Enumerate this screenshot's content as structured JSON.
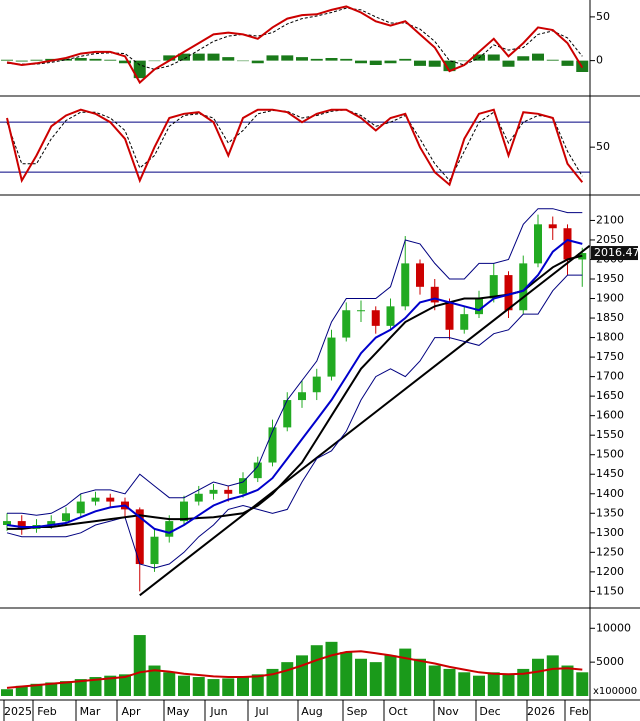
{
  "chart_data": [
    {
      "type": "line",
      "ylim": [
        -37,
        67
      ],
      "yticks": [
        0,
        50
      ],
      "series": [
        {
          "style": "bar",
          "color": "#1a7a1a",
          "values": [
            1,
            -1,
            1,
            2,
            2,
            3,
            2,
            1,
            -3,
            -20,
            0,
            6,
            8,
            8,
            8,
            4,
            0,
            -3,
            6,
            6,
            4,
            2,
            3,
            2,
            -3,
            -5,
            -3,
            2,
            -6,
            -7,
            -12,
            0,
            7,
            7,
            -7,
            5,
            8,
            1,
            -6,
            -13
          ]
        },
        {
          "style": "dashed",
          "color": "#000000",
          "values": [
            -3,
            -4,
            -4,
            -2,
            1,
            5,
            8,
            9,
            8,
            -5,
            -10,
            -6,
            2,
            12,
            22,
            28,
            30,
            28,
            32,
            42,
            48,
            51,
            55,
            60,
            58,
            50,
            43,
            43,
            36,
            22,
            0,
            -5,
            3,
            18,
            12,
            15,
            30,
            34,
            26,
            5
          ]
        },
        {
          "style": "line",
          "color": "#cc0000",
          "values": [
            -2,
            -5,
            -3,
            0,
            3,
            8,
            10,
            10,
            5,
            -25,
            -10,
            0,
            10,
            20,
            30,
            32,
            30,
            25,
            38,
            48,
            52,
            53,
            58,
            62,
            55,
            45,
            40,
            45,
            30,
            15,
            -12,
            -5,
            10,
            25,
            5,
            20,
            38,
            35,
            20,
            -8
          ]
        }
      ]
    },
    {
      "type": "line",
      "ylim": [
        -5,
        109
      ],
      "yticks": [
        50
      ],
      "levels": [
        20,
        80
      ],
      "series": [
        {
          "style": "dashed",
          "color": "#000000",
          "values": [
            80,
            30,
            30,
            60,
            82,
            92,
            92,
            85,
            70,
            25,
            40,
            75,
            88,
            90,
            85,
            55,
            70,
            90,
            94,
            93,
            85,
            88,
            93,
            95,
            88,
            75,
            80,
            88,
            60,
            30,
            10,
            45,
            80,
            92,
            55,
            80,
            88,
            86,
            45,
            15
          ]
        },
        {
          "style": "line",
          "color": "#cc0000",
          "values": [
            85,
            10,
            40,
            75,
            88,
            95,
            90,
            80,
            60,
            10,
            50,
            85,
            90,
            92,
            80,
            40,
            85,
            95,
            95,
            92,
            80,
            90,
            95,
            95,
            85,
            70,
            85,
            90,
            50,
            20,
            5,
            60,
            90,
            95,
            40,
            92,
            90,
            85,
            30,
            8
          ]
        }
      ]
    },
    {
      "type": "candlestick",
      "ylim": [
        1110,
        2160
      ],
      "yticks": [
        1150,
        1200,
        1250,
        1300,
        1350,
        1400,
        1450,
        1500,
        1550,
        1600,
        1650,
        1700,
        1750,
        1800,
        1850,
        1900,
        1950,
        2000,
        2050,
        2100
      ],
      "up_color": "#22aa22",
      "down_color": "#cc0000",
      "candles": [
        [
          1320,
          1350,
          1305,
          1330
        ],
        [
          1330,
          1345,
          1295,
          1310
        ],
        [
          1310,
          1335,
          1300,
          1320
        ],
        [
          1320,
          1345,
          1310,
          1330
        ],
        [
          1330,
          1365,
          1320,
          1350
        ],
        [
          1350,
          1400,
          1340,
          1380
        ],
        [
          1380,
          1405,
          1370,
          1390
        ],
        [
          1390,
          1400,
          1365,
          1380
        ],
        [
          1380,
          1390,
          1340,
          1360
        ],
        [
          1360,
          1365,
          1150,
          1220
        ],
        [
          1220,
          1310,
          1200,
          1290
        ],
        [
          1290,
          1345,
          1275,
          1330
        ],
        [
          1330,
          1395,
          1320,
          1380
        ],
        [
          1380,
          1420,
          1370,
          1400
        ],
        [
          1400,
          1425,
          1385,
          1410
        ],
        [
          1410,
          1420,
          1380,
          1400
        ],
        [
          1400,
          1455,
          1390,
          1440
        ],
        [
          1440,
          1495,
          1430,
          1480
        ],
        [
          1480,
          1590,
          1470,
          1570
        ],
        [
          1570,
          1660,
          1560,
          1640
        ],
        [
          1640,
          1690,
          1620,
          1660
        ],
        [
          1660,
          1720,
          1640,
          1700
        ],
        [
          1700,
          1820,
          1690,
          1800
        ],
        [
          1800,
          1890,
          1790,
          1870
        ],
        [
          1870,
          1895,
          1840,
          1870
        ],
        [
          1870,
          1880,
          1810,
          1830
        ],
        [
          1830,
          1900,
          1820,
          1880
        ],
        [
          1880,
          2060,
          1870,
          1990
        ],
        [
          1990,
          2000,
          1910,
          1930
        ],
        [
          1930,
          1950,
          1870,
          1890
        ],
        [
          1890,
          1900,
          1795,
          1820
        ],
        [
          1820,
          1880,
          1810,
          1860
        ],
        [
          1860,
          1920,
          1850,
          1900
        ],
        [
          1900,
          1990,
          1890,
          1960
        ],
        [
          1960,
          1970,
          1850,
          1870
        ],
        [
          1870,
          2010,
          1860,
          1990
        ],
        [
          1990,
          2115,
          1980,
          2090
        ],
        [
          2090,
          2110,
          2050,
          2080
        ],
        [
          2080,
          2090,
          1960,
          2000
        ],
        [
          2000,
          2030,
          1930,
          2016.47
        ]
      ],
      "series": [
        {
          "style": "line",
          "color": "#000080",
          "width": 1,
          "values": [
            1350,
            1350,
            1345,
            1350,
            1370,
            1400,
            1410,
            1410,
            1400,
            1450,
            1420,
            1390,
            1390,
            1410,
            1430,
            1420,
            1430,
            1470,
            1560,
            1640,
            1690,
            1740,
            1840,
            1900,
            1900,
            1900,
            1930,
            2050,
            2040,
            1990,
            1950,
            1950,
            1990,
            1990,
            2000,
            2090,
            2130,
            2130,
            2120,
            2120
          ]
        },
        {
          "style": "line",
          "color": "#000080",
          "width": 1,
          "values": [
            1300,
            1290,
            1290,
            1290,
            1290,
            1300,
            1320,
            1330,
            1340,
            1220,
            1210,
            1220,
            1250,
            1290,
            1320,
            1360,
            1370,
            1360,
            1350,
            1360,
            1430,
            1490,
            1510,
            1560,
            1640,
            1700,
            1720,
            1700,
            1740,
            1800,
            1800,
            1790,
            1780,
            1810,
            1820,
            1860,
            1860,
            1920,
            1960,
            1960
          ]
        },
        {
          "style": "line",
          "color": "#000000",
          "width": 2,
          "values": [
            1310,
            1310,
            1315,
            1315,
            1320,
            1325,
            1330,
            1335,
            1340,
            1345,
            1340,
            1335,
            1335,
            1338,
            1340,
            1345,
            1350,
            1370,
            1400,
            1440,
            1480,
            1540,
            1600,
            1660,
            1720,
            1760,
            1800,
            1840,
            1860,
            1880,
            1890,
            1900,
            1900,
            1905,
            1910,
            1920,
            1950,
            1980,
            2000,
            2010
          ]
        },
        {
          "style": "line",
          "color": "#0000cc",
          "width": 2,
          "values": [
            1320,
            1315,
            1315,
            1320,
            1325,
            1340,
            1355,
            1365,
            1370,
            1340,
            1310,
            1300,
            1320,
            1345,
            1370,
            1385,
            1395,
            1410,
            1440,
            1490,
            1540,
            1590,
            1640,
            1700,
            1760,
            1800,
            1820,
            1850,
            1890,
            1900,
            1890,
            1880,
            1870,
            1900,
            1910,
            1920,
            1960,
            2020,
            2050,
            2040
          ]
        }
      ],
      "trendline": {
        "x": [
          9,
          39.5
        ],
        "values": [
          1140,
          2035
        ],
        "color": "#000000"
      }
    },
    {
      "type": "bar",
      "ylim": [
        0,
        12700
      ],
      "yticks": [
        5000,
        10000
      ],
      "unit_label": "x100000",
      "series": [
        {
          "style": "bar",
          "color": "#1a9a1a",
          "values": [
            1000,
            1500,
            1800,
            2000,
            2200,
            2500,
            2800,
            3000,
            3200,
            9000,
            4500,
            3500,
            3000,
            2800,
            2500,
            2600,
            2800,
            3200,
            4000,
            5000,
            6000,
            7500,
            8000,
            6500,
            5500,
            5000,
            6000,
            7000,
            5500,
            4500,
            4000,
            3500,
            3000,
            3500,
            3200,
            4000,
            5500,
            6000,
            4500,
            3500
          ]
        },
        {
          "style": "line",
          "color": "#cc0000",
          "width": 2,
          "values": [
            1200,
            1400,
            1600,
            1800,
            2000,
            2200,
            2400,
            2600,
            2800,
            3500,
            3800,
            3600,
            3300,
            3100,
            2900,
            2800,
            2800,
            2900,
            3200,
            3800,
            4500,
            5300,
            6000,
            6500,
            6600,
            6300,
            6000,
            5600,
            5200,
            4800,
            4300,
            3900,
            3500,
            3300,
            3200,
            3300,
            3600,
            4000,
            4100,
            3900
          ]
        }
      ],
      "month_labels": [
        "2025",
        "Feb",
        "Mar",
        "Apr",
        "May",
        "Jun",
        "Jul",
        "Aug",
        "Sep",
        "Oct",
        "Nov",
        "Dec",
        "2026",
        "Feb"
      ]
    }
  ]
}
